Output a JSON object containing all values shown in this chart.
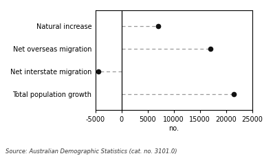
{
  "categories": [
    "Natural increase",
    "Net overseas migration",
    "Net interstate migration",
    "Total population growth"
  ],
  "values": [
    7000,
    17000,
    -4500,
    21500
  ],
  "xlabel": "no.",
  "xlim": [
    -5000,
    25000
  ],
  "xticks": [
    -5000,
    0,
    5000,
    10000,
    15000,
    20000,
    25000
  ],
  "xtick_labels": [
    "-5000",
    "0",
    "5000",
    "10000",
    "15000",
    "20000",
    "25000"
  ],
  "source_text": "Source: Australian Demographic Statistics (cat. no. 3101.0)",
  "dot_color": "#111111",
  "line_color": "#999999",
  "background_color": "#ffffff",
  "spine_color": "#000000",
  "line_dashes": [
    4,
    3
  ],
  "dot_size": 4.5,
  "label_fontsize": 7,
  "tick_fontsize": 7,
  "source_fontsize": 6
}
